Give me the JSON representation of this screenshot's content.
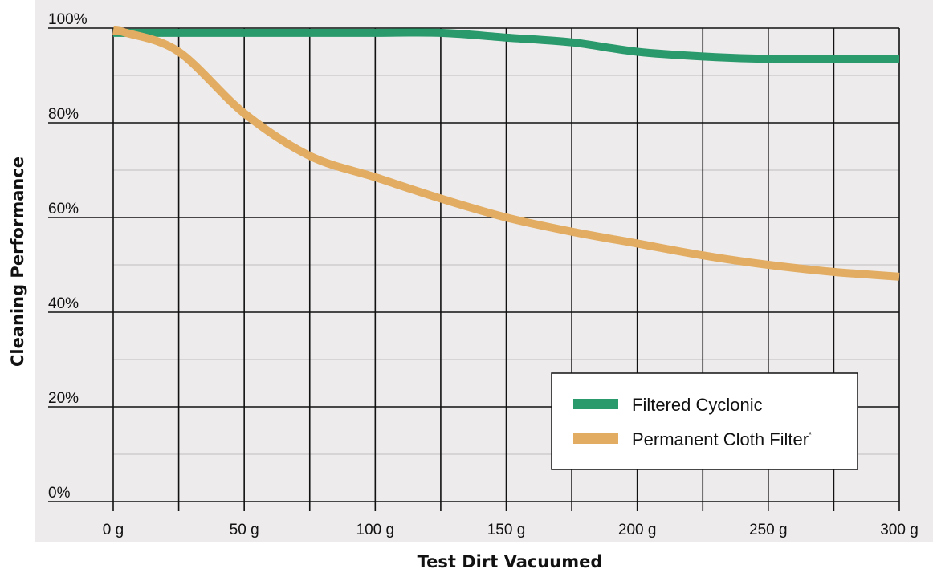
{
  "chart_data": {
    "type": "line",
    "xlabel": "Test Dirt Vacuumed",
    "ylabel": "Cleaning Performance",
    "xlim": [
      0,
      300
    ],
    "ylim": [
      0,
      100
    ],
    "x_ticks": [
      0,
      50,
      100,
      150,
      200,
      250,
      300
    ],
    "x_tick_labels": [
      "0 g",
      "50 g",
      "100 g",
      "150 g",
      "200 g",
      "250 g",
      "300 g"
    ],
    "y_ticks": [
      0,
      20,
      40,
      60,
      80,
      100
    ],
    "y_tick_labels": [
      "0%",
      "20%",
      "40%",
      "60%",
      "80%",
      "100%"
    ],
    "grid": true,
    "legend_position": "bottom-right",
    "series": [
      {
        "name": "Filtered Cyclonic",
        "color": "#2a9a6c",
        "x": [
          0,
          25,
          50,
          75,
          100,
          125,
          150,
          175,
          200,
          225,
          250,
          275,
          300
        ],
        "values": [
          99,
          99,
          99,
          99,
          99,
          99,
          98,
          97,
          95,
          94,
          93.5,
          93.5,
          93.5
        ]
      },
      {
        "name": "Permanent Cloth Filter",
        "name_suffix": "*",
        "color": "#e2ad62",
        "x": [
          0,
          5,
          25,
          50,
          75,
          100,
          125,
          150,
          175,
          200,
          225,
          250,
          275,
          300
        ],
        "values": [
          99.5,
          99,
          95,
          82,
          73,
          68.5,
          64,
          60,
          57,
          54.5,
          52,
          50,
          48.5,
          47.5
        ]
      }
    ]
  }
}
